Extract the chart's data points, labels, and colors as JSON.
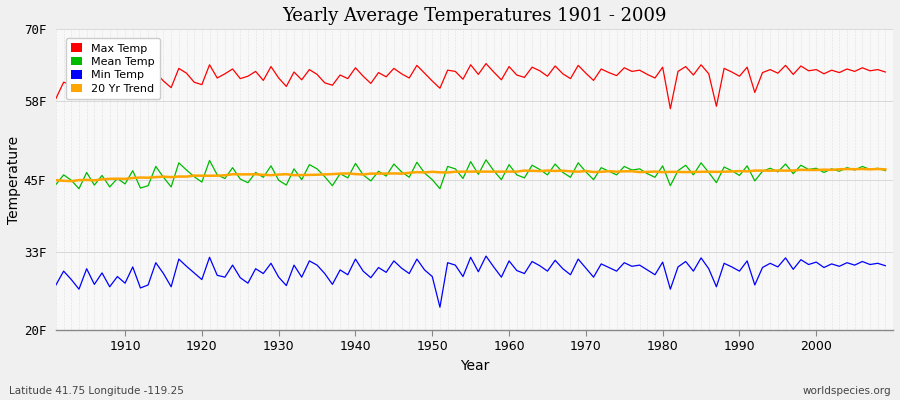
{
  "title": "Yearly Average Temperatures 1901 - 2009",
  "xlabel": "Year",
  "ylabel": "Temperature",
  "subtitle_lat": "Latitude 41.75 Longitude -119.25",
  "watermark": "worldspecies.org",
  "yticks": [
    20,
    33,
    45,
    58,
    70
  ],
  "ytick_labels": [
    "20F",
    "33F",
    "45F",
    "58F",
    "70F"
  ],
  "year_start": 1901,
  "year_end": 2009,
  "bg_color": "#f0f0f0",
  "plot_bg_color": "#f8f8f8",
  "max_temp_color": "#ff0000",
  "mean_temp_color": "#00bb00",
  "min_temp_color": "#0000ff",
  "trend_color": "#ffa500",
  "legend_labels": [
    "Max Temp",
    "Mean Temp",
    "Min Temp",
    "20 Yr Trend"
  ],
  "max_temps": [
    58.5,
    61.2,
    60.8,
    59.4,
    61.8,
    60.2,
    62.3,
    59.8,
    61.5,
    60.4,
    62.1,
    59.6,
    60.9,
    62.8,
    61.4,
    60.3,
    63.5,
    62.7,
    61.2,
    60.8,
    64.1,
    61.9,
    62.6,
    63.4,
    61.8,
    62.2,
    63.0,
    61.5,
    63.8,
    61.9,
    60.5,
    62.9,
    61.6,
    63.3,
    62.5,
    61.1,
    60.7,
    62.4,
    61.8,
    63.6,
    62.2,
    61.0,
    62.8,
    62.1,
    63.5,
    62.6,
    61.9,
    64.0,
    62.7,
    61.4,
    60.2,
    63.2,
    63.0,
    61.7,
    64.1,
    62.5,
    64.3,
    62.9,
    61.6,
    63.8,
    62.4,
    62.0,
    63.7,
    63.1,
    62.2,
    63.9,
    62.6,
    61.8,
    64.0,
    62.7,
    61.5,
    63.4,
    62.8,
    62.3,
    63.6,
    63.0,
    63.2,
    62.5,
    61.9,
    63.7,
    56.8,
    63.0,
    63.8,
    62.4,
    64.1,
    62.6,
    57.2,
    63.5,
    62.9,
    62.2,
    63.7,
    59.5,
    62.8,
    63.3,
    62.7,
    64.0,
    62.5,
    63.9,
    63.1,
    63.3,
    62.6,
    63.2,
    62.8,
    63.4,
    63.0,
    63.6,
    63.1,
    63.3,
    62.9
  ],
  "mean_temps": [
    44.2,
    45.8,
    44.9,
    43.5,
    46.2,
    44.1,
    45.7,
    43.8,
    45.2,
    44.3,
    46.5,
    43.6,
    44.0,
    47.2,
    45.4,
    43.8,
    47.8,
    46.6,
    45.5,
    44.6,
    48.2,
    45.8,
    45.2,
    47.0,
    45.1,
    44.5,
    46.2,
    45.4,
    47.3,
    44.9,
    44.1,
    46.8,
    45.0,
    47.5,
    46.8,
    45.5,
    44.0,
    46.0,
    45.3,
    47.7,
    45.8,
    44.8,
    46.4,
    45.6,
    47.6,
    46.3,
    45.4,
    47.9,
    46.1,
    45.0,
    43.5,
    47.2,
    46.8,
    45.2,
    48.0,
    45.9,
    48.3,
    46.5,
    45.0,
    47.5,
    45.8,
    45.3,
    47.4,
    46.7,
    45.8,
    47.6,
    46.2,
    45.4,
    47.8,
    46.3,
    45.0,
    47.0,
    46.4,
    45.8,
    47.2,
    46.6,
    46.8,
    46.0,
    45.4,
    47.3,
    44.0,
    46.5,
    47.4,
    45.8,
    47.8,
    46.2,
    44.5,
    47.1,
    46.5,
    45.7,
    47.3,
    44.8,
    46.4,
    46.9,
    46.3,
    47.6,
    46.0,
    47.4,
    46.7,
    46.9,
    46.2,
    46.8,
    46.4,
    47.0,
    46.6,
    47.2,
    46.7,
    46.9,
    46.5
  ],
  "min_temps": [
    27.5,
    29.8,
    28.4,
    26.8,
    30.2,
    27.6,
    29.5,
    27.2,
    28.9,
    27.8,
    30.5,
    27.0,
    27.5,
    31.2,
    29.4,
    27.2,
    31.8,
    30.6,
    29.5,
    28.4,
    32.1,
    29.1,
    28.8,
    30.8,
    28.7,
    27.8,
    30.2,
    29.4,
    31.1,
    28.8,
    27.4,
    30.8,
    28.8,
    31.5,
    30.8,
    29.4,
    27.6,
    30.0,
    29.2,
    31.8,
    29.8,
    28.7,
    30.4,
    29.6,
    31.5,
    30.3,
    29.4,
    31.8,
    30.0,
    28.9,
    23.8,
    31.2,
    30.8,
    28.9,
    32.1,
    29.7,
    32.3,
    30.5,
    28.8,
    31.5,
    29.9,
    29.4,
    31.4,
    30.7,
    29.8,
    31.6,
    30.2,
    29.2,
    31.8,
    30.3,
    28.8,
    31.0,
    30.4,
    29.8,
    31.2,
    30.6,
    30.8,
    30.0,
    29.2,
    31.3,
    26.8,
    30.5,
    31.4,
    29.8,
    32.0,
    30.2,
    27.2,
    31.1,
    30.5,
    29.8,
    31.5,
    27.5,
    30.4,
    31.1,
    30.5,
    32.0,
    30.1,
    31.7,
    30.9,
    31.3,
    30.4,
    31.0,
    30.6,
    31.2,
    30.8,
    31.4,
    30.9,
    31.1,
    30.7
  ]
}
